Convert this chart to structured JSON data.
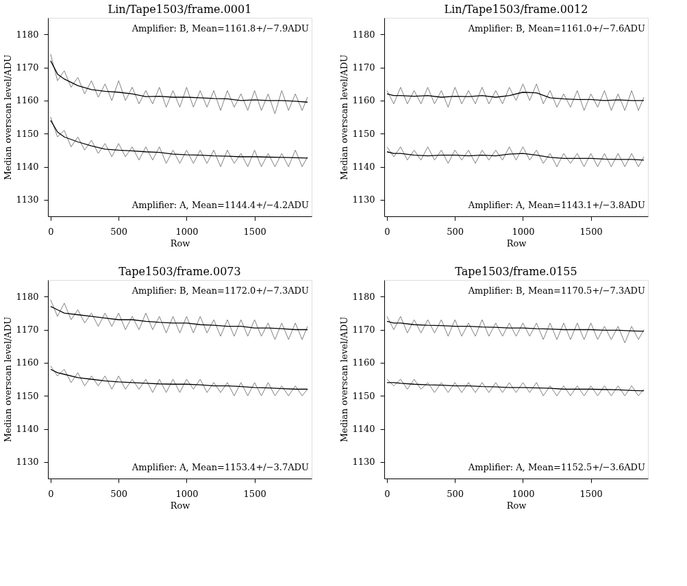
{
  "chart_data": [
    {
      "type": "line",
      "title": "Lin/Tape1503/frame.0001",
      "xlabel": "Row",
      "ylabel": "Median overscan level/ADU",
      "xlim": [
        -20,
        1920
      ],
      "ylim": [
        1125,
        1185
      ],
      "xticks": [
        0,
        500,
        1000,
        1500
      ],
      "yticks": [
        1130,
        1140,
        1150,
        1160,
        1170,
        1180
      ],
      "grid": false,
      "annotations": [
        "Amplifier: B, Mean=1161.8+/−7.9ADU",
        "Amplifier: A, Mean=1144.4+/−4.2ADU"
      ],
      "series": [
        {
          "color": "#808080",
          "x": [
            0,
            50,
            100,
            150,
            200,
            250,
            300,
            350,
            400,
            450,
            500,
            550,
            600,
            650,
            700,
            750,
            800,
            850,
            900,
            950,
            1000,
            1050,
            1100,
            1150,
            1200,
            1250,
            1300,
            1350,
            1400,
            1450,
            1500,
            1550,
            1600,
            1650,
            1700,
            1750,
            1800,
            1850,
            1890
          ],
          "values": [
            1174,
            1166,
            1169,
            1164,
            1167,
            1162,
            1166,
            1161,
            1165,
            1160,
            1166,
            1160,
            1164,
            1159,
            1163,
            1159,
            1164,
            1158,
            1163,
            1158,
            1164,
            1158,
            1163,
            1158,
            1163,
            1157,
            1163,
            1158,
            1162,
            1157,
            1163,
            1157,
            1162,
            1156,
            1163,
            1157,
            1162,
            1157,
            1161
          ]
        },
        {
          "color": "#000000",
          "x": [
            0,
            50,
            100,
            200,
            300,
            400,
            500,
            600,
            700,
            800,
            900,
            1000,
            1100,
            1200,
            1300,
            1400,
            1500,
            1600,
            1700,
            1800,
            1890
          ],
          "values": [
            1172,
            1168,
            1166.5,
            1164.5,
            1163.3,
            1162.8,
            1162.5,
            1162,
            1161.2,
            1161.3,
            1161,
            1161,
            1160.8,
            1160.6,
            1160.5,
            1160,
            1160.2,
            1160,
            1160,
            1159.8,
            1159.5
          ]
        },
        {
          "color": "#808080",
          "x": [
            0,
            50,
            100,
            150,
            200,
            250,
            300,
            350,
            400,
            450,
            500,
            550,
            600,
            650,
            700,
            750,
            800,
            850,
            900,
            950,
            1000,
            1050,
            1100,
            1150,
            1200,
            1250,
            1300,
            1350,
            1400,
            1450,
            1500,
            1550,
            1600,
            1650,
            1700,
            1750,
            1800,
            1850,
            1890
          ],
          "values": [
            1155,
            1149,
            1151,
            1146,
            1149,
            1145,
            1148,
            1144,
            1147,
            1143,
            1147,
            1143,
            1146,
            1142,
            1146,
            1142,
            1146,
            1141,
            1145,
            1141,
            1145,
            1141,
            1145,
            1141,
            1145,
            1140,
            1145,
            1141,
            1144,
            1140,
            1145,
            1140,
            1144,
            1140,
            1144,
            1140,
            1145,
            1140,
            1143
          ]
        },
        {
          "color": "#000000",
          "x": [
            0,
            50,
            100,
            200,
            300,
            400,
            500,
            600,
            700,
            800,
            900,
            1000,
            1100,
            1200,
            1300,
            1400,
            1500,
            1600,
            1700,
            1800,
            1890
          ],
          "values": [
            1154,
            1150.5,
            1149,
            1147.5,
            1146.3,
            1145.3,
            1145,
            1144.8,
            1144.5,
            1144.3,
            1143.8,
            1143.6,
            1143.5,
            1143.3,
            1143.2,
            1143,
            1143,
            1142.9,
            1142.8,
            1142.7,
            1142.6
          ]
        }
      ]
    },
    {
      "type": "line",
      "title": "Lin/Tape1503/frame.0012",
      "xlabel": "Row",
      "ylabel": "Median overscan level/ADU",
      "xlim": [
        -20,
        1920
      ],
      "ylim": [
        1125,
        1185
      ],
      "xticks": [
        0,
        500,
        1000,
        1500
      ],
      "yticks": [
        1130,
        1140,
        1150,
        1160,
        1170,
        1180
      ],
      "grid": false,
      "annotations": [
        "Amplifier: B, Mean=1161.0+/−7.6ADU",
        "Amplifier: A, Mean=1143.1+/−3.8ADU"
      ],
      "series": [
        {
          "color": "#808080",
          "x": [
            0,
            50,
            100,
            150,
            200,
            250,
            300,
            350,
            400,
            450,
            500,
            550,
            600,
            650,
            700,
            750,
            800,
            850,
            900,
            950,
            1000,
            1050,
            1100,
            1150,
            1200,
            1250,
            1300,
            1350,
            1400,
            1450,
            1500,
            1550,
            1600,
            1650,
            1700,
            1750,
            1800,
            1850,
            1890
          ],
          "values": [
            1163,
            1159,
            1164,
            1159,
            1163,
            1159,
            1164,
            1159,
            1163,
            1158,
            1164,
            1159,
            1163,
            1159,
            1164,
            1159,
            1163,
            1159,
            1164,
            1160,
            1165,
            1160,
            1165,
            1159,
            1163,
            1158,
            1162,
            1158,
            1163,
            1157,
            1162,
            1158,
            1163,
            1157,
            1162,
            1157,
            1163,
            1157,
            1161
          ]
        },
        {
          "color": "#000000",
          "x": [
            0,
            50,
            100,
            200,
            300,
            400,
            500,
            600,
            700,
            800,
            900,
            1000,
            1100,
            1200,
            1300,
            1400,
            1500,
            1600,
            1700,
            1800,
            1890
          ],
          "values": [
            1162,
            1161.5,
            1161.5,
            1161.3,
            1161.5,
            1161,
            1161.3,
            1161.2,
            1161.5,
            1161,
            1161.5,
            1162.5,
            1162.3,
            1160.8,
            1160.5,
            1160.3,
            1160.3,
            1160,
            1160.2,
            1160,
            1160
          ]
        },
        {
          "color": "#808080",
          "x": [
            0,
            50,
            100,
            150,
            200,
            250,
            300,
            350,
            400,
            450,
            500,
            550,
            600,
            650,
            700,
            750,
            800,
            850,
            900,
            950,
            1000,
            1050,
            1100,
            1150,
            1200,
            1250,
            1300,
            1350,
            1400,
            1450,
            1500,
            1550,
            1600,
            1650,
            1700,
            1750,
            1800,
            1850,
            1890
          ],
          "values": [
            1146,
            1143,
            1146,
            1142,
            1145,
            1142,
            1146,
            1142,
            1145,
            1141,
            1145,
            1142,
            1145,
            1141,
            1145,
            1142,
            1145,
            1142,
            1146,
            1142,
            1146,
            1142,
            1145,
            1141,
            1144,
            1140,
            1144,
            1141,
            1144,
            1140,
            1144,
            1140,
            1144,
            1140,
            1144,
            1140,
            1144,
            1140,
            1143
          ]
        },
        {
          "color": "#000000",
          "x": [
            0,
            50,
            100,
            200,
            300,
            400,
            500,
            600,
            700,
            800,
            900,
            1000,
            1100,
            1200,
            1300,
            1400,
            1500,
            1600,
            1700,
            1800,
            1890
          ],
          "values": [
            1144.5,
            1144,
            1144,
            1143.5,
            1143.3,
            1143.5,
            1143.5,
            1143.3,
            1143.5,
            1143.3,
            1143.8,
            1144,
            1143.5,
            1142.8,
            1142.5,
            1142.5,
            1142.5,
            1142.3,
            1142.2,
            1142.2,
            1142
          ]
        }
      ]
    },
    {
      "type": "line",
      "title": "Tape1503/frame.0073",
      "xlabel": "Row",
      "ylabel": "Median overscan level/ADU",
      "xlim": [
        -20,
        1920
      ],
      "ylim": [
        1125,
        1185
      ],
      "xticks": [
        0,
        500,
        1000,
        1500
      ],
      "yticks": [
        1130,
        1140,
        1150,
        1160,
        1170,
        1180
      ],
      "grid": false,
      "annotations": [
        "Amplifier: B, Mean=1172.0+/−7.3ADU",
        "Amplifier: A, Mean=1153.4+/−3.7ADU"
      ],
      "series": [
        {
          "color": "#808080",
          "x": [
            0,
            50,
            100,
            150,
            200,
            250,
            300,
            350,
            400,
            450,
            500,
            550,
            600,
            650,
            700,
            750,
            800,
            850,
            900,
            950,
            1000,
            1050,
            1100,
            1150,
            1200,
            1250,
            1300,
            1350,
            1400,
            1450,
            1500,
            1550,
            1600,
            1650,
            1700,
            1750,
            1800,
            1850,
            1890
          ],
          "values": [
            1179,
            1174,
            1178,
            1173,
            1176,
            1172,
            1175,
            1171,
            1175,
            1171,
            1175,
            1170,
            1174,
            1170,
            1175,
            1170,
            1174,
            1169,
            1174,
            1169,
            1174,
            1169,
            1174,
            1169,
            1173,
            1168,
            1173,
            1168,
            1173,
            1168,
            1173,
            1168,
            1172,
            1167,
            1172,
            1167,
            1172,
            1167,
            1171
          ]
        },
        {
          "color": "#000000",
          "x": [
            0,
            50,
            100,
            200,
            300,
            400,
            500,
            600,
            700,
            800,
            900,
            1000,
            1100,
            1200,
            1300,
            1400,
            1500,
            1600,
            1700,
            1800,
            1890
          ],
          "values": [
            1177,
            1176,
            1175,
            1174.5,
            1174,
            1173.5,
            1173,
            1173,
            1172.5,
            1172.2,
            1172,
            1172,
            1171.5,
            1171.3,
            1171,
            1171,
            1170.5,
            1170.5,
            1170.3,
            1170,
            1170
          ]
        },
        {
          "color": "#808080",
          "x": [
            0,
            50,
            100,
            150,
            200,
            250,
            300,
            350,
            400,
            450,
            500,
            550,
            600,
            650,
            700,
            750,
            800,
            850,
            900,
            950,
            1000,
            1050,
            1100,
            1150,
            1200,
            1250,
            1300,
            1350,
            1400,
            1450,
            1500,
            1550,
            1600,
            1650,
            1700,
            1750,
            1800,
            1850,
            1890
          ],
          "values": [
            1159,
            1156,
            1158,
            1154,
            1157,
            1153,
            1156,
            1153,
            1156,
            1152,
            1156,
            1152,
            1155,
            1152,
            1155,
            1151,
            1155,
            1151,
            1155,
            1151,
            1155,
            1152,
            1155,
            1151,
            1154,
            1151,
            1154,
            1150,
            1154,
            1150,
            1154,
            1150,
            1154,
            1150,
            1153,
            1150,
            1153,
            1150,
            1152
          ]
        },
        {
          "color": "#000000",
          "x": [
            0,
            50,
            100,
            200,
            300,
            400,
            500,
            600,
            700,
            800,
            900,
            1000,
            1100,
            1200,
            1300,
            1400,
            1500,
            1600,
            1700,
            1800,
            1890
          ],
          "values": [
            1158,
            1157,
            1156.5,
            1155.5,
            1155,
            1154.5,
            1154.2,
            1154,
            1153.8,
            1153.6,
            1153.5,
            1153.5,
            1153.3,
            1153,
            1153,
            1152.8,
            1152.5,
            1152.4,
            1152.2,
            1152,
            1152
          ]
        }
      ]
    },
    {
      "type": "line",
      "title": "Tape1503/frame.0155",
      "xlabel": "Row",
      "ylabel": "Median overscan level/ADU",
      "xlim": [
        -20,
        1920
      ],
      "ylim": [
        1125,
        1185
      ],
      "xticks": [
        0,
        500,
        1000,
        1500
      ],
      "yticks": [
        1130,
        1140,
        1150,
        1160,
        1170,
        1180
      ],
      "grid": false,
      "annotations": [
        "Amplifier: B, Mean=1170.5+/−7.3ADU",
        "Amplifier: A, Mean=1152.5+/−3.6ADU"
      ],
      "series": [
        {
          "color": "#808080",
          "x": [
            0,
            50,
            100,
            150,
            200,
            250,
            300,
            350,
            400,
            450,
            500,
            550,
            600,
            650,
            700,
            750,
            800,
            850,
            900,
            950,
            1000,
            1050,
            1100,
            1150,
            1200,
            1250,
            1300,
            1350,
            1400,
            1450,
            1500,
            1550,
            1600,
            1650,
            1700,
            1750,
            1800,
            1850,
            1890
          ],
          "values": [
            1174,
            1170,
            1174,
            1169,
            1173,
            1169,
            1173,
            1169,
            1173,
            1168,
            1173,
            1168,
            1172,
            1168,
            1173,
            1168,
            1172,
            1168,
            1172,
            1168,
            1172,
            1168,
            1172,
            1167,
            1172,
            1167,
            1172,
            1167,
            1172,
            1167,
            1172,
            1167,
            1171,
            1167,
            1171,
            1166,
            1171,
            1167,
            1170
          ]
        },
        {
          "color": "#000000",
          "x": [
            0,
            50,
            100,
            200,
            300,
            400,
            500,
            600,
            700,
            800,
            900,
            1000,
            1100,
            1200,
            1300,
            1400,
            1500,
            1600,
            1700,
            1800,
            1890
          ],
          "values": [
            1172.5,
            1172,
            1172,
            1171.5,
            1171.3,
            1171.2,
            1171,
            1171,
            1170.8,
            1170.7,
            1170.5,
            1170.5,
            1170.3,
            1170.2,
            1170,
            1170,
            1170,
            1169.8,
            1169.8,
            1169.6,
            1169.5
          ]
        },
        {
          "color": "#808080",
          "x": [
            0,
            50,
            100,
            150,
            200,
            250,
            300,
            350,
            400,
            450,
            500,
            550,
            600,
            650,
            700,
            750,
            800,
            850,
            900,
            950,
            1000,
            1050,
            1100,
            1150,
            1200,
            1250,
            1300,
            1350,
            1400,
            1450,
            1500,
            1550,
            1600,
            1650,
            1700,
            1750,
            1800,
            1850,
            1890
          ],
          "values": [
            1155,
            1153,
            1155,
            1152,
            1155,
            1152,
            1154,
            1151,
            1154,
            1151,
            1154,
            1151,
            1154,
            1151,
            1154,
            1151,
            1154,
            1151,
            1154,
            1151,
            1154,
            1151,
            1154,
            1150,
            1153,
            1150,
            1153,
            1150,
            1153,
            1150,
            1153,
            1150,
            1153,
            1150,
            1153,
            1150,
            1153,
            1150,
            1152
          ]
        },
        {
          "color": "#000000",
          "x": [
            0,
            50,
            100,
            200,
            300,
            400,
            500,
            600,
            700,
            800,
            900,
            1000,
            1100,
            1200,
            1300,
            1400,
            1500,
            1600,
            1700,
            1800,
            1890
          ],
          "values": [
            1154,
            1154,
            1153.8,
            1153.5,
            1153.3,
            1153.2,
            1153,
            1153,
            1152.8,
            1152.7,
            1152.5,
            1152.5,
            1152.4,
            1152.3,
            1152,
            1152,
            1152,
            1151.9,
            1151.8,
            1151.6,
            1151.5
          ]
        }
      ]
    }
  ]
}
